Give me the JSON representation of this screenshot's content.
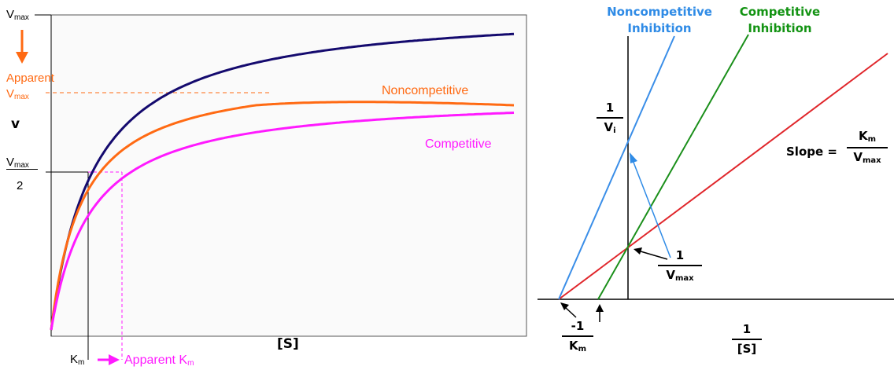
{
  "colors": {
    "uninhibited": "#140a6e",
    "noncompetitive": "#ff6a13",
    "competitive": "#ff1aff",
    "lb_uninhibited": "#e0262b",
    "lb_noncompetitive": "#3a8ee8",
    "lb_competitive": "#1a8f1a"
  },
  "left": {
    "vmax_label": "V",
    "vmax_sub": "max",
    "apparent_label": "Apparent",
    "apparent_vmax": "V",
    "apparent_vmax_sub": "max",
    "v_axis_label": "v",
    "half_vmax_num": "V",
    "half_vmax_num_sub": "max",
    "half_vmax_den": "2",
    "noncompetitive_label": "Noncompetitive",
    "competitive_label": "Competitive",
    "km_label": "K",
    "km_sub": "m",
    "apparent_km_label": "Apparent K",
    "apparent_km_sub": "m",
    "x_axis_label": "[S]"
  },
  "right": {
    "noncomp_title_line1": "Noncompetitive",
    "noncomp_title_line2": "Inhibition",
    "comp_title_line1": "Competitive",
    "comp_title_line2": "Inhibition",
    "y_frac_num": "1",
    "y_frac_den": "V",
    "y_frac_den_sub": "i",
    "slope_label": "Slope =",
    "slope_num": "K",
    "slope_num_sub": "m",
    "slope_den": "V",
    "slope_den_sub": "max",
    "inv_vmax_num": "1",
    "inv_vmax_den": "V",
    "inv_vmax_den_sub": "max",
    "neg_inv_km_num": "-1",
    "neg_inv_km_den": "K",
    "neg_inv_km_den_sub": "m",
    "x_frac_num": "1",
    "x_frac_den": "[S]"
  }
}
